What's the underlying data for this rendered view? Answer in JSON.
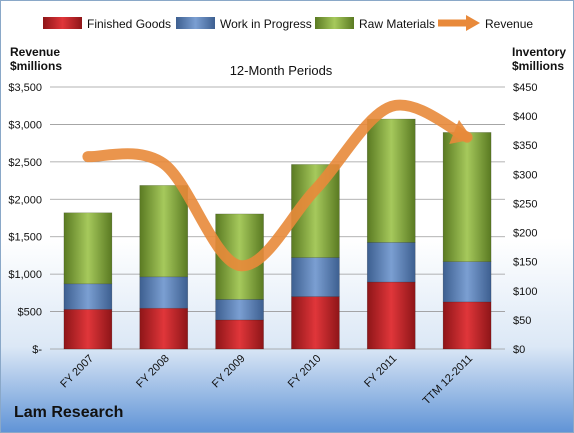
{
  "company": "Lam Research",
  "colors": {
    "finished_goods": "#c0272d",
    "work_in_progress": "#5b7fb4",
    "raw_materials": "#7ea33a",
    "revenue": "#e8893a"
  },
  "chart_data": {
    "type": "bar",
    "stacked": true,
    "title": "12-Month Periods",
    "ylabel_left": "Revenue\n$millions",
    "ylabel_right": "Inventory\n$millions",
    "categories": [
      "FY 2007",
      "FY 2008",
      "FY 2009",
      "FY 2010",
      "FY 2011",
      "TTM 12-2011"
    ],
    "left_axis": {
      "min": 0,
      "max": 3500,
      "step": 500,
      "ticks": [
        "$-",
        "$500",
        "$1,000",
        "$1,500",
        "$2,000",
        "$2,500",
        "$3,000",
        "$3,500"
      ]
    },
    "right_axis": {
      "min": 0,
      "max": 450,
      "step": 50,
      "ticks": [
        "$0",
        "$50",
        "$100",
        "$150",
        "$200",
        "$250",
        "$300",
        "$350",
        "$400",
        "$450"
      ]
    },
    "series": [
      {
        "name": "Finished Goods",
        "axis": "right",
        "values": [
          68,
          70,
          50,
          90,
          115,
          81
        ]
      },
      {
        "name": "Work in Progress",
        "axis": "right",
        "values": [
          44,
          54,
          35,
          67,
          68,
          69
        ]
      },
      {
        "name": "Raw Materials",
        "axis": "right",
        "values": [
          122,
          157,
          147,
          160,
          212,
          222
        ]
      },
      {
        "name": "Revenue",
        "axis": "left",
        "type": "line",
        "values": [
          2570,
          2475,
          1115,
          2130,
          3240,
          2830
        ]
      }
    ],
    "legend_position": "top",
    "grid": true
  }
}
